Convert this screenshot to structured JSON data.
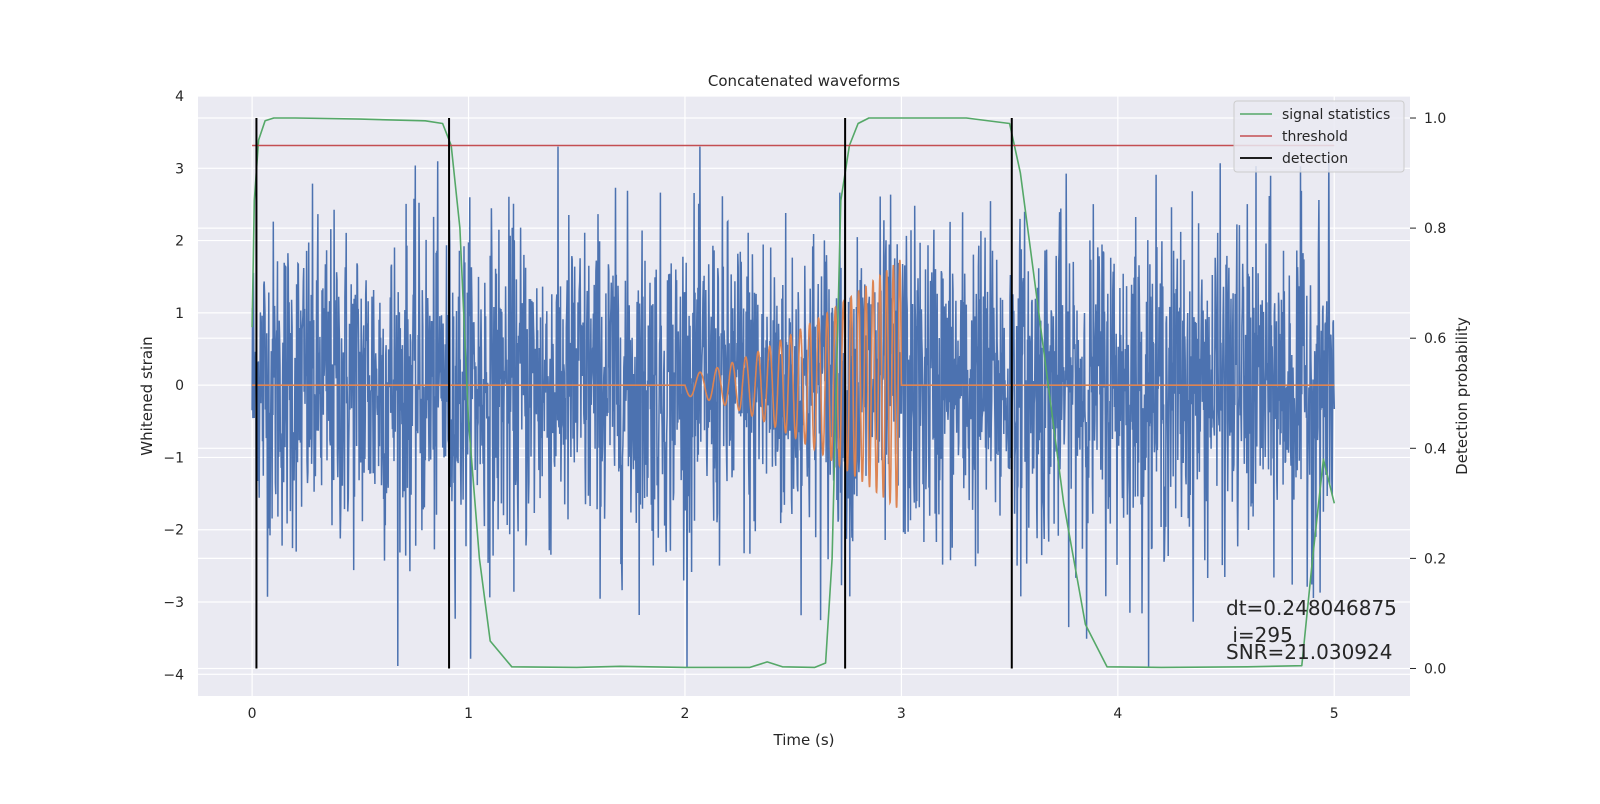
{
  "chart_data": {
    "type": "line",
    "title": "Concatenated waveforms",
    "xlabel": "Time (s)",
    "ylabel": "Whitened strain",
    "ylabel_right": "Detection probability",
    "xlim": [
      -0.25,
      5.35
    ],
    "ylim": [
      -4.3,
      4.0
    ],
    "ylim_right": [
      -0.05,
      1.04
    ],
    "x_ticks": [
      0,
      1,
      2,
      3,
      4,
      5
    ],
    "y_ticks": [
      4,
      3,
      2,
      1,
      0,
      -1,
      -2,
      -3,
      -4
    ],
    "y_tick_labels": [
      "4",
      "3",
      "2",
      "1",
      "0",
      "−1",
      "−2",
      "−3",
      "−4"
    ],
    "y_right_ticks": [
      1.0,
      0.8,
      0.6,
      0.4,
      0.2,
      0.0
    ],
    "y_right_tick_labels": [
      "1.0",
      "0.8",
      "0.6",
      "0.4",
      "0.2",
      "0.0"
    ],
    "grid": true,
    "legend_position": "top-right",
    "legend": [
      "signal statistics",
      "threshold",
      "detection"
    ],
    "series": [
      {
        "name": "whitened strain",
        "axis": "left",
        "color": "#4c72b0",
        "kind": "noise",
        "x_range": [
          0,
          5
        ],
        "amplitude_typical": 1.8,
        "y_range": [
          -3.9,
          3.3
        ]
      },
      {
        "name": "injected waveform",
        "axis": "left",
        "color": "#dd8452",
        "kind": "chirp",
        "x_range": [
          0,
          5
        ],
        "chirp_start": 2.0,
        "chirp_end": 3.0,
        "amplitude_start": 0.15,
        "amplitude_end": 1.75
      },
      {
        "name": "signal statistics",
        "axis": "right",
        "color": "#55a868",
        "x": [
          0,
          0.01,
          0.03,
          0.06,
          0.1,
          0.2,
          0.5,
          0.8,
          0.88,
          0.92,
          0.96,
          1.0,
          1.05,
          1.1,
          1.2,
          1.5,
          1.7,
          2.0,
          2.3,
          2.38,
          2.45,
          2.6,
          2.65,
          2.68,
          2.72,
          2.76,
          2.8,
          2.85,
          3.0,
          3.3,
          3.5,
          3.55,
          3.6,
          3.7,
          3.75,
          3.85,
          3.95,
          4.2,
          4.6,
          4.85,
          4.9,
          4.95,
          5.0
        ],
        "y": [
          0.62,
          0.85,
          0.96,
          0.995,
          1.0,
          1.0,
          0.998,
          0.995,
          0.99,
          0.95,
          0.8,
          0.45,
          0.2,
          0.05,
          0.003,
          0.002,
          0.004,
          0.002,
          0.002,
          0.012,
          0.003,
          0.002,
          0.01,
          0.2,
          0.85,
          0.95,
          0.99,
          1.0,
          1.0,
          1.0,
          0.99,
          0.9,
          0.75,
          0.45,
          0.3,
          0.08,
          0.003,
          0.002,
          0.003,
          0.005,
          0.2,
          0.38,
          0.3
        ]
      },
      {
        "name": "threshold",
        "axis": "right",
        "color": "#c44e52",
        "x": [
          0,
          5
        ],
        "y": [
          0.95,
          0.95
        ]
      }
    ],
    "detections": {
      "color": "#000000",
      "x": [
        0.02,
        0.91,
        2.74,
        3.51
      ],
      "y_range": [
        0.0,
        1.0
      ]
    },
    "annotations": [
      "dt=0.248046875",
      " i=295",
      "SNR=21.030924"
    ]
  }
}
